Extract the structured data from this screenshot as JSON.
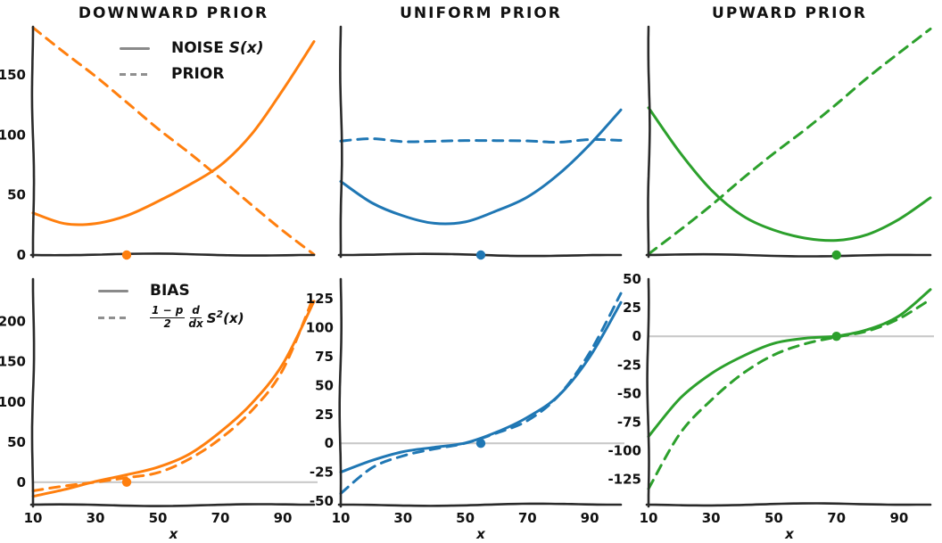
{
  "figure": {
    "columns": [
      {
        "title": "DOWNWARD PRIOR",
        "color": "#ff7f0e"
      },
      {
        "title": "UNIFORM PRIOR",
        "color": "#1f77b4"
      },
      {
        "title": "UPWARD PRIOR",
        "color": "#2ca02c"
      }
    ]
  },
  "legend_top": {
    "noise_prefix": "NOISE",
    "noise_func": "S(x)",
    "prior_label": "PRIOR"
  },
  "legend_bottom": {
    "bias_label": "BIAS",
    "formula": {
      "f1_num": "1 − p",
      "f1_den": "2",
      "f2_num": "d",
      "f2_den": "dx",
      "base": "S",
      "exp": "2",
      "args": "(x)"
    }
  },
  "axis": {
    "xlabel": "x",
    "text_color": "#111111",
    "spine_color": "#2a2a2a",
    "zero_line_color": "#c9c9c9",
    "legend_line_color": "#8a8a8a"
  },
  "chart_data": {
    "type": "line",
    "style": "xkcd-hand-drawn",
    "x": [
      10,
      20,
      30,
      40,
      50,
      60,
      70,
      80,
      90,
      100
    ],
    "xlim": [
      10,
      100
    ],
    "xticks": [
      10,
      30,
      50,
      70,
      90
    ],
    "panels": [
      {
        "id": "downward-noise-prior",
        "row": 0,
        "col": 0,
        "ylim": [
          0,
          190
        ],
        "yticks": [
          0,
          50,
          100,
          150
        ],
        "show_ytick_labels": true,
        "show_xtick_labels": false,
        "zero_line": false,
        "series": [
          {
            "name": "NOISE S(x)",
            "style": "solid",
            "y": [
              35,
              27,
              26,
              32,
              45,
              59,
              74,
              100,
              138,
              178
            ]
          },
          {
            "name": "PRIOR",
            "style": "dashed",
            "y": [
              190,
              169,
              148,
              127,
              106,
              85,
              63,
              42,
              21,
              0
            ]
          }
        ],
        "marker": {
          "x": 40,
          "y": 0
        }
      },
      {
        "id": "uniform-noise-prior",
        "row": 0,
        "col": 1,
        "ylim": [
          0,
          190
        ],
        "yticks": [],
        "show_ytick_labels": false,
        "show_xtick_labels": false,
        "zero_line": false,
        "series": [
          {
            "name": "NOISE S(x)",
            "style": "solid",
            "y": [
              62,
              43,
              32,
              27,
              28,
              36,
              48,
              68,
              92,
              120
            ]
          },
          {
            "name": "PRIOR",
            "style": "dashed",
            "y": [
              95,
              96,
              94.5,
              95.5,
              95,
              94.5,
              95.5,
              94.5,
              95.5,
              95
            ]
          }
        ],
        "marker": {
          "x": 55,
          "y": 0
        }
      },
      {
        "id": "upward-noise-prior",
        "row": 0,
        "col": 2,
        "ylim": [
          0,
          190
        ],
        "yticks": [],
        "show_ytick_labels": false,
        "show_xtick_labels": false,
        "zero_line": false,
        "series": [
          {
            "name": "NOISE S(x)",
            "style": "solid",
            "y": [
              122,
              85,
              55,
              33,
              20,
              14,
              13,
              17,
              29,
              48
            ]
          },
          {
            "name": "PRIOR",
            "style": "dashed",
            "y": [
              0,
              21,
              42,
              63,
              84,
              105,
              126,
              147,
              168,
              189
            ]
          }
        ],
        "marker": {
          "x": 70,
          "y": 0
        }
      },
      {
        "id": "downward-bias",
        "row": 1,
        "col": 0,
        "ylim": [
          -28,
          253
        ],
        "yticks": [
          0,
          50,
          100,
          150,
          200
        ],
        "show_ytick_labels": true,
        "show_xtick_labels": true,
        "xlabel": "x",
        "zero_line": true,
        "series": [
          {
            "name": "BIAS",
            "style": "solid",
            "y": [
              -18,
              -8,
              1,
              8,
              19,
              36,
              62,
              97,
              148,
              226
            ]
          },
          {
            "name": "(1−p)/2 d/dx S^2(x)",
            "style": "dashed",
            "y": [
              -10,
              -4,
              -1,
              5,
              13,
              29,
              53,
              89,
              141,
              232
            ]
          }
        ],
        "marker": {
          "x": 40,
          "y": 0
        }
      },
      {
        "id": "uniform-bias",
        "row": 1,
        "col": 1,
        "ylim": [
          -53,
          142
        ],
        "yticks": [
          -50,
          -25,
          0,
          25,
          50,
          75,
          100,
          125
        ],
        "show_ytick_labels": true,
        "show_xtick_labels": true,
        "xlabel": "x",
        "zero_line": true,
        "series": [
          {
            "name": "BIAS",
            "style": "solid",
            "y": [
              -24,
              -15,
              -8,
              -3,
              1,
              9,
              22,
              42,
              75,
              121
            ]
          },
          {
            "name": "(1−p)/2 d/dx S^2(x)",
            "style": "dashed",
            "y": [
              -43,
              -22,
              -11,
              -4,
              0,
              8,
              20,
              42,
              78,
              129
            ]
          }
        ],
        "marker": {
          "x": 55,
          "y": 0
        }
      },
      {
        "id": "upward-bias",
        "row": 1,
        "col": 2,
        "ylim": [
          -147,
          50
        ],
        "yticks": [
          -125,
          -100,
          -75,
          -50,
          -25,
          0,
          25,
          50
        ],
        "show_ytick_labels": true,
        "show_xtick_labels": true,
        "xlabel": "x",
        "zero_line": true,
        "series": [
          {
            "name": "BIAS",
            "style": "solid",
            "y": [
              -88,
              -55,
              -32,
              -17,
              -7,
              -2,
              1,
              6,
              17,
              41
            ]
          },
          {
            "name": "(1−p)/2 d/dx S^2(x)",
            "style": "dashed",
            "y": [
              -134,
              -85,
              -55,
              -33,
              -17,
              -6,
              0,
              4,
              15,
              33
            ]
          }
        ],
        "marker": {
          "x": 70,
          "y": 0
        }
      }
    ]
  }
}
